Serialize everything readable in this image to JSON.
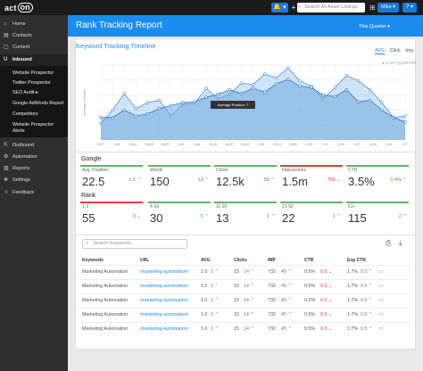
{
  "topbar": {
    "logo_left": "act",
    "logo_right": "on",
    "bell": "🔔 ▾",
    "plus": "+",
    "search_placeholder": "Search All Asset Listings",
    "grid": "⊞",
    "user": "Mike ▾",
    "help": "? ▾"
  },
  "sidebar": {
    "items": [
      {
        "icon": "⌂",
        "label": "Home"
      },
      {
        "icon": "▤",
        "label": "Contacts"
      },
      {
        "icon": "▢",
        "label": "Content"
      },
      {
        "icon": "U",
        "label": "Inbound"
      }
    ],
    "inbound_sub": [
      "Website Prospector",
      "Twitter Prospector",
      "SEO Audit ▸",
      "Google AdWords Report",
      "Competitors",
      "Website Prospector",
      "Alerts"
    ],
    "bottom_items": [
      {
        "icon": "⇱",
        "label": "Outbound"
      },
      {
        "icon": "⚙",
        "label": "Automation"
      },
      {
        "icon": "▥",
        "label": "Reports"
      },
      {
        "icon": "✻",
        "label": "Settings"
      },
      {
        "icon": "☺",
        "label": "Feedback"
      }
    ]
  },
  "header": {
    "title": "Rank Tracking Report",
    "range": "This Quarter ▾"
  },
  "timeline": {
    "title": "Keyword Tracking Timeline",
    "tabs": [
      "AVG",
      "Click",
      "Imp"
    ],
    "legend": "● LAST QUARTER",
    "tooltip": "Average Position: 7"
  },
  "chart_data": {
    "type": "area",
    "ylabel": "Average Position",
    "x": [
      "9/27",
      "10/4",
      "10/11",
      "10/18",
      "10/25",
      "11/1",
      "11/8",
      "11/15",
      "11/22",
      "11/29",
      "12/6",
      "12/13",
      "12/20",
      "12/27",
      "1/3",
      "1/10",
      "1/17",
      "1/24",
      "1/31",
      "2/7",
      "2/14",
      "2/21",
      "2/28",
      "3/7",
      "3/14",
      "3/21",
      "3/28"
    ],
    "x_tick_labels": [
      "9/27",
      "10/4",
      "10/11",
      "10/18",
      "10/25",
      "11/1",
      "11/8",
      "11/15",
      "11/22",
      "11/29",
      "12/6",
      "12/13",
      "12/20",
      "12/27",
      "1/3",
      "1/10",
      "1/17",
      "1/24",
      "1/31",
      "2/7"
    ],
    "series": [
      {
        "values": [
          2.2,
          4.0,
          6.2,
          4.2,
          5.0,
          5.3,
          3.2,
          4.8,
          4.9,
          6.9,
          5.5,
          6.1,
          7.6,
          7.4,
          8.8,
          8.3,
          9.6,
          7.9,
          7.2,
          5.5,
          7.0,
          8.6,
          7.9,
          6.7,
          5.0,
          3.0,
          3.2
        ]
      },
      {
        "values": [
          3.0,
          3.0,
          4.0,
          3.2,
          3.5,
          4.2,
          4.6,
          5.0,
          5.1,
          5.7,
          6.1,
          6.7,
          6.2,
          6.9,
          6.4,
          7.5,
          8.1,
          7.2,
          7.0,
          6.0,
          5.8,
          6.7,
          5.1,
          5.3,
          4.0,
          3.0,
          2.4
        ]
      }
    ],
    "ylim": [
      0,
      10
    ]
  },
  "google": {
    "label": "Google",
    "metrics": [
      {
        "label": "Avg. Position",
        "value": "22.5",
        "change": "1.5 ⌃",
        "down": false
      },
      {
        "label": "Words",
        "value": "150",
        "change": "13 ⌃",
        "down": false
      },
      {
        "label": "Clicks",
        "value": "12.5k",
        "change": "50 ⌃",
        "down": false
      },
      {
        "label": "Impressions",
        "value": "1.5m",
        "change": "750 ⌄",
        "down": true
      },
      {
        "label": "CTR",
        "value": "3.5%",
        "change": "0.4% ⌃",
        "down": false
      }
    ]
  },
  "rank": {
    "label": "Rank",
    "metrics": [
      {
        "label": "1-3",
        "value": "55",
        "change": "3 ⌄",
        "down": true
      },
      {
        "label": "4-10",
        "value": "30",
        "change": "5 ⌃",
        "down": false
      },
      {
        "label": "11-20",
        "value": "13",
        "change": "2 ⌃",
        "down": false
      },
      {
        "label": "21-50",
        "value": "22",
        "change": "1 ⌃",
        "down": false
      },
      {
        "label": "51+",
        "value": "115",
        "change": "2 ⌃",
        "down": false
      }
    ]
  },
  "table": {
    "search_placeholder": "Search Keywords...",
    "columns": [
      "Keywords",
      "URL",
      "AVG",
      "Clicks",
      "IMP",
      "CTR",
      "Exp CTR"
    ],
    "rows": [
      {
        "keyword": "Marketing Automation",
        "url": "/marketing-automation/",
        "avg": "1.0",
        "avg_chg": "2 ⌃",
        "clicks": "15",
        "clicks_chg": "14 ⌃",
        "imp": "732",
        "imp_chg": "45 ⌃",
        "ctr": "0.5%",
        "ctr_chg": "0.3 ⌄",
        "exp": "1.7%",
        "exp_chg": "0.5 ⌃"
      },
      {
        "keyword": "Marketing Automation",
        "url": "/marketing-automation/",
        "avg": "1.0",
        "avg_chg": "2 ⌃",
        "clicks": "15",
        "clicks_chg": "14 ⌃",
        "imp": "732",
        "imp_chg": "45 ⌃",
        "ctr": "0.5%",
        "ctr_chg": "0.3 ⌄",
        "exp": "1.7%",
        "exp_chg": "0.5 ⌃"
      },
      {
        "keyword": "Marketing Automation",
        "url": "/marketing-automation/",
        "avg": "1.0",
        "avg_chg": "2 ⌃",
        "clicks": "15",
        "clicks_chg": "14 ⌃",
        "imp": "732",
        "imp_chg": "45 ⌃",
        "ctr": "0.5%",
        "ctr_chg": "0.3 ⌄",
        "exp": "1.7%",
        "exp_chg": "0.5 ⌃"
      },
      {
        "keyword": "Marketing Automation",
        "url": "/marketing-automation/",
        "avg": "1.0",
        "avg_chg": "2 ⌃",
        "clicks": "15",
        "clicks_chg": "14 ⌃",
        "imp": "732",
        "imp_chg": "45 ⌃",
        "ctr": "0.5%",
        "ctr_chg": "0.3 ⌄",
        "exp": "1.7%",
        "exp_chg": "0.5 ⌃"
      },
      {
        "keyword": "Marketing Automation",
        "url": "/marketing-automation/",
        "avg": "1.0",
        "avg_chg": "2 ⌃",
        "clicks": "15",
        "clicks_chg": "14 ⌃",
        "imp": "732",
        "imp_chg": "45 ⌃",
        "ctr": "0.5%",
        "ctr_chg": "0.3 ⌄",
        "exp": "1.7%",
        "exp_chg": "0.5 ⌃"
      }
    ]
  },
  "colors": {
    "accent": "#1b8cef",
    "positive": "#43a047",
    "negative": "#e53935",
    "sidebar": "#2f2f2f"
  }
}
